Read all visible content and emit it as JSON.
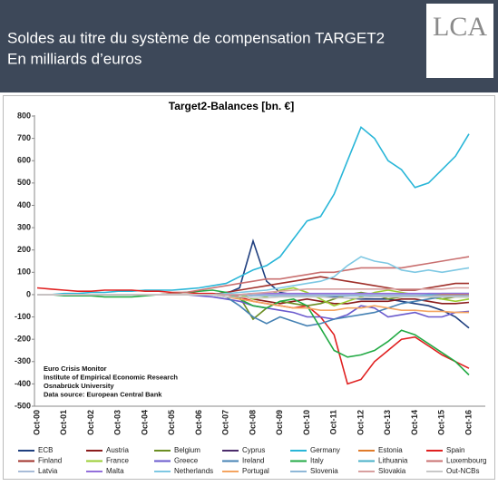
{
  "header": {
    "title_line1": "Soldes au titre du système de compensation TARGET2",
    "title_line2": "En milliards d’euros",
    "logo": "LCA"
  },
  "chart_data": {
    "type": "line",
    "title": "Target2-Balances [bn. €]",
    "categories": [
      "Oct-00",
      null,
      "Oct-01",
      null,
      "Oct-02",
      null,
      "Oct-03",
      null,
      "Oct-04",
      null,
      "Oct-05",
      null,
      "Oct-06",
      null,
      "Oct-07",
      null,
      "Oct-08",
      null,
      "Oct-09",
      null,
      "Oct-10",
      null,
      "Oct-11",
      null,
      "Oct-12",
      null,
      "Oct-13",
      null,
      "Oct-14",
      null,
      "Oct-15",
      null,
      "Oct-16"
    ],
    "ylim": [
      -500,
      800
    ],
    "yticks": [
      -500,
      -400,
      -300,
      -200,
      -100,
      0,
      100,
      200,
      300,
      400,
      500,
      600,
      700,
      800
    ],
    "annotations": [
      "Euro Crisis Monitor",
      "Institute of Empirical Economic Research",
      "Osnabrück University",
      "Data source: European Central Bank"
    ],
    "series": [
      {
        "name": "ECB",
        "color": "#1f3f7f",
        "values": [
          0,
          0,
          0,
          0,
          0,
          0,
          0,
          0,
          0,
          0,
          0,
          0,
          0,
          0,
          5,
          30,
          240,
          60,
          10,
          0,
          -5,
          -10,
          -10,
          -15,
          -20,
          -20,
          -20,
          -30,
          -40,
          -50,
          -70,
          -100,
          -150
        ]
      },
      {
        "name": "Austria",
        "color": "#8b1c1c",
        "values": [
          0,
          0,
          0,
          0,
          0,
          0,
          0,
          0,
          0,
          0,
          0,
          0,
          0,
          0,
          0,
          0,
          -20,
          -30,
          -40,
          -30,
          -20,
          -30,
          -40,
          -40,
          -30,
          -30,
          -30,
          -20,
          -20,
          -30,
          -40,
          -40,
          -35
        ]
      },
      {
        "name": "Belgium",
        "color": "#6b8e23",
        "values": [
          0,
          0,
          0,
          0,
          0,
          0,
          0,
          0,
          0,
          0,
          0,
          0,
          0,
          0,
          10,
          -10,
          -110,
          -60,
          -30,
          -40,
          -50,
          -40,
          -20,
          0,
          10,
          0,
          -20,
          -10,
          0,
          -10,
          -20,
          -10,
          -10
        ]
      },
      {
        "name": "Cyprus",
        "color": "#4b2c6b",
        "values": [
          0,
          0,
          0,
          0,
          0,
          0,
          0,
          0,
          0,
          0,
          0,
          0,
          0,
          0,
          0,
          0,
          -5,
          -5,
          -5,
          -5,
          -5,
          -5,
          -5,
          -5,
          -5,
          -5,
          -5,
          -5,
          -5,
          -5,
          -5,
          -5,
          -5
        ]
      },
      {
        "name": "Germany",
        "color": "#29b6d8",
        "values": [
          0,
          0,
          5,
          5,
          10,
          10,
          15,
          15,
          20,
          20,
          20,
          25,
          30,
          40,
          50,
          80,
          110,
          130,
          170,
          250,
          330,
          350,
          450,
          600,
          750,
          700,
          600,
          560,
          480,
          500,
          560,
          620,
          720
        ]
      },
      {
        "name": "Estonia",
        "color": "#e07b2a",
        "values": [
          0,
          0,
          0,
          0,
          0,
          0,
          0,
          0,
          0,
          0,
          0,
          0,
          0,
          0,
          0,
          0,
          0,
          0,
          0,
          0,
          0,
          0,
          0,
          0,
          0,
          0,
          0,
          0,
          0,
          0,
          0,
          0,
          0
        ]
      },
      {
        "name": "Spain",
        "color": "#e02020",
        "values": [
          30,
          25,
          20,
          15,
          15,
          20,
          20,
          20,
          15,
          15,
          10,
          10,
          5,
          5,
          0,
          -10,
          -30,
          -40,
          -50,
          -60,
          -50,
          -100,
          -180,
          -400,
          -380,
          -300,
          -250,
          -200,
          -190,
          -230,
          -270,
          -300,
          -330
        ]
      },
      {
        "name": "Finland",
        "color": "#a0302a",
        "values": [
          0,
          0,
          0,
          0,
          0,
          0,
          0,
          0,
          0,
          0,
          0,
          0,
          0,
          0,
          10,
          20,
          30,
          40,
          50,
          60,
          70,
          80,
          70,
          60,
          50,
          40,
          30,
          20,
          20,
          30,
          40,
          50,
          50
        ]
      },
      {
        "name": "France",
        "color": "#9acd32",
        "values": [
          0,
          0,
          0,
          0,
          0,
          0,
          0,
          0,
          0,
          0,
          0,
          0,
          0,
          0,
          0,
          0,
          -20,
          -10,
          20,
          30,
          10,
          -20,
          -50,
          -30,
          -10,
          10,
          20,
          10,
          0,
          -10,
          -20,
          -30,
          -20
        ]
      },
      {
        "name": "Greece",
        "color": "#6a5acd",
        "values": [
          0,
          0,
          0,
          0,
          0,
          0,
          0,
          0,
          0,
          0,
          0,
          0,
          -5,
          -10,
          -20,
          -30,
          -50,
          -60,
          -70,
          -80,
          -100,
          -100,
          -110,
          -90,
          -50,
          -60,
          -100,
          -90,
          -80,
          -100,
          -100,
          -80,
          -75
        ]
      },
      {
        "name": "Ireland",
        "color": "#4682b4",
        "values": [
          0,
          0,
          0,
          0,
          0,
          0,
          0,
          0,
          0,
          0,
          0,
          0,
          0,
          0,
          -10,
          -50,
          -100,
          -130,
          -100,
          -120,
          -140,
          -130,
          -110,
          -100,
          -90,
          -80,
          -60,
          -40,
          -30,
          -20,
          -10,
          -5,
          -5
        ]
      },
      {
        "name": "Italy",
        "color": "#22aa44",
        "values": [
          0,
          0,
          -5,
          -5,
          -5,
          -10,
          -10,
          -10,
          -5,
          0,
          5,
          10,
          15,
          20,
          10,
          -20,
          -50,
          -60,
          -30,
          -20,
          -50,
          -150,
          -250,
          -280,
          -270,
          -250,
          -210,
          -160,
          -180,
          -220,
          -260,
          -300,
          -360
        ]
      },
      {
        "name": "Lithuania",
        "color": "#48b0c8",
        "values": [
          0,
          0,
          0,
          0,
          0,
          0,
          0,
          0,
          0,
          0,
          0,
          0,
          0,
          0,
          0,
          0,
          0,
          0,
          0,
          0,
          0,
          0,
          0,
          0,
          0,
          0,
          0,
          0,
          0,
          0,
          5,
          5,
          5
        ]
      },
      {
        "name": "Luxembourg",
        "color": "#c97070",
        "values": [
          0,
          0,
          0,
          0,
          0,
          0,
          0,
          0,
          0,
          0,
          5,
          10,
          20,
          30,
          40,
          50,
          60,
          70,
          70,
          80,
          90,
          100,
          100,
          110,
          120,
          120,
          120,
          120,
          130,
          140,
          150,
          160,
          170
        ]
      },
      {
        "name": "Latvia",
        "color": "#a8bcd8",
        "values": [
          0,
          0,
          0,
          0,
          0,
          0,
          0,
          0,
          0,
          0,
          0,
          0,
          0,
          0,
          0,
          0,
          0,
          0,
          0,
          0,
          0,
          0,
          0,
          0,
          0,
          0,
          0,
          0,
          0,
          5,
          5,
          5,
          5
        ]
      },
      {
        "name": "Malta",
        "color": "#9370db",
        "values": [
          0,
          0,
          0,
          0,
          0,
          0,
          0,
          0,
          0,
          0,
          0,
          0,
          0,
          0,
          0,
          0,
          5,
          5,
          5,
          5,
          5,
          5,
          5,
          5,
          5,
          5,
          5,
          5,
          5,
          5,
          5,
          5,
          5
        ]
      },
      {
        "name": "Netherlands",
        "color": "#7ec8e3",
        "values": [
          0,
          0,
          0,
          0,
          0,
          0,
          0,
          0,
          0,
          0,
          0,
          0,
          0,
          0,
          5,
          10,
          15,
          20,
          30,
          40,
          50,
          60,
          80,
          130,
          170,
          150,
          140,
          110,
          100,
          110,
          100,
          110,
          120
        ]
      },
      {
        "name": "Portugal",
        "color": "#f4a460",
        "values": [
          0,
          0,
          0,
          0,
          0,
          0,
          0,
          0,
          0,
          0,
          0,
          0,
          0,
          0,
          -10,
          -20,
          -30,
          -40,
          -50,
          -60,
          -60,
          -70,
          -70,
          -60,
          -60,
          -50,
          -60,
          -70,
          -70,
          -75,
          -75,
          -80,
          -80
        ]
      },
      {
        "name": "Slovenia",
        "color": "#8fb8d8",
        "values": [
          0,
          0,
          0,
          0,
          0,
          0,
          0,
          0,
          0,
          0,
          0,
          0,
          0,
          0,
          0,
          0,
          -5,
          -5,
          -5,
          -5,
          -5,
          -5,
          -5,
          -5,
          -5,
          -5,
          -5,
          -5,
          -5,
          -5,
          -5,
          -5,
          -5
        ]
      },
      {
        "name": "Slovakia",
        "color": "#d8a0a0",
        "values": [
          0,
          0,
          0,
          0,
          0,
          0,
          0,
          0,
          0,
          0,
          0,
          0,
          0,
          0,
          0,
          0,
          5,
          10,
          15,
          20,
          25,
          25,
          25,
          25,
          25,
          25,
          25,
          25,
          25,
          25,
          25,
          30,
          30
        ]
      },
      {
        "name": "Out-NCBs",
        "color": "#c8c8c8",
        "values": [
          0,
          0,
          0,
          0,
          0,
          0,
          0,
          0,
          0,
          0,
          0,
          0,
          0,
          0,
          -10,
          -10,
          -15,
          -15,
          -10,
          -10,
          -10,
          -10,
          -15,
          -15,
          -15,
          -10,
          -10,
          -10,
          -10,
          -10,
          -10,
          -10,
          -10
        ]
      }
    ]
  }
}
